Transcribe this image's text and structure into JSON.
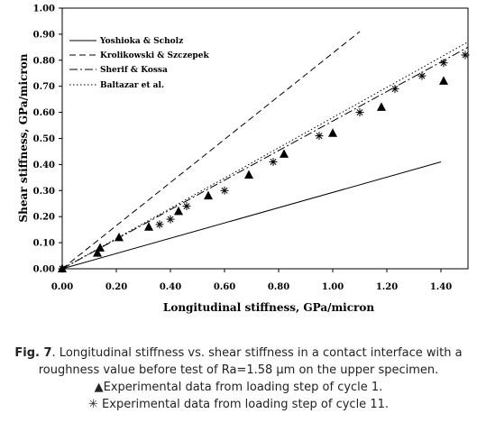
{
  "chart_data": {
    "type": "scatter",
    "xlabel": "Longitudinal stiffness, GPa/micron",
    "ylabel": "Shear stiffness, GPa/micron",
    "xlim": [
      0,
      1.5
    ],
    "ylim": [
      0,
      1.0
    ],
    "x_ticks": [
      "0.00",
      "0.20",
      "0.40",
      "0.60",
      "0.80",
      "1.00",
      "1.20",
      "1.40"
    ],
    "y_ticks": [
      "0.00",
      "0.10",
      "0.20",
      "0.30",
      "0.40",
      "0.50",
      "0.60",
      "0.70",
      "0.80",
      "0.90",
      "1.00"
    ],
    "grid": false,
    "legend_position": "top-left",
    "lines": [
      {
        "name": "Yoshioka & Scholz",
        "style": "solid",
        "points": [
          [
            0,
            0
          ],
          [
            1.4,
            0.41
          ]
        ]
      },
      {
        "name": "Krolikowski & Szczepek",
        "style": "dashed",
        "points": [
          [
            0,
            0
          ],
          [
            1.1,
            0.91
          ]
        ]
      },
      {
        "name": "Sherif & Kossa",
        "style": "dashdot",
        "points": [
          [
            0,
            0
          ],
          [
            1.5,
            0.85
          ]
        ]
      },
      {
        "name": "Baltazar et al.",
        "style": "dotted",
        "points": [
          [
            0,
            0
          ],
          [
            1.5,
            0.87
          ]
        ]
      }
    ],
    "series": [
      {
        "marker": "triangle",
        "points": [
          [
            0.0,
            0.0
          ],
          [
            0.13,
            0.06
          ],
          [
            0.14,
            0.08
          ],
          [
            0.21,
            0.12
          ],
          [
            0.32,
            0.16
          ],
          [
            0.43,
            0.22
          ],
          [
            0.54,
            0.28
          ],
          [
            0.69,
            0.36
          ],
          [
            0.82,
            0.44
          ],
          [
            1.0,
            0.52
          ],
          [
            1.18,
            0.62
          ],
          [
            1.41,
            0.72
          ]
        ]
      },
      {
        "marker": "asterisk",
        "points": [
          [
            0.0,
            0.0
          ],
          [
            0.36,
            0.17
          ],
          [
            0.4,
            0.19
          ],
          [
            0.46,
            0.24
          ],
          [
            0.6,
            0.3
          ],
          [
            0.78,
            0.41
          ],
          [
            0.95,
            0.51
          ],
          [
            1.1,
            0.6
          ],
          [
            1.23,
            0.69
          ],
          [
            1.33,
            0.74
          ],
          [
            1.41,
            0.79
          ],
          [
            1.49,
            0.82
          ]
        ]
      }
    ]
  },
  "caption": {
    "fig_label": "Fig. 7",
    "line1": ". Longitudinal stiffness vs. shear stiffness in a contact interface with a",
    "line2": "roughness value before test of Ra=1.58 µm on the upper specimen.",
    "line3": "Experimental data from loading step of cycle 1.",
    "line4": "Experimental data from loading step of cycle 11."
  }
}
